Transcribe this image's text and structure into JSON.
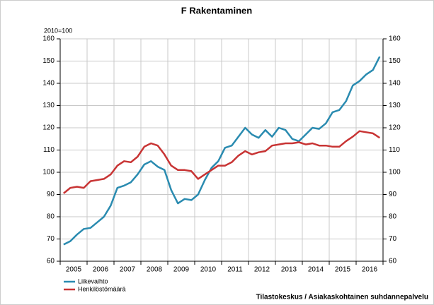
{
  "chart_data": {
    "type": "line",
    "title": "F Rakentaminen",
    "y_label": "2010=100",
    "source": "Tilastokeskus / Asiakaskohtainen suhdannepalvelu",
    "categories": [
      null,
      "2005",
      null,
      null,
      null,
      "2006",
      null,
      null,
      null,
      "2007",
      null,
      null,
      null,
      "2008",
      null,
      null,
      null,
      "2009",
      null,
      null,
      null,
      "2010",
      null,
      null,
      null,
      "2011",
      null,
      null,
      null,
      "2012",
      null,
      null,
      null,
      "2013",
      null,
      null,
      null,
      "2014",
      null,
      null,
      null,
      "2015",
      null,
      null,
      null,
      "2016",
      null,
      null
    ],
    "series": [
      {
        "name": "Liikevaihto",
        "color": "#2a8bb0",
        "values": [
          67.5,
          69,
          72,
          74.5,
          75,
          77.5,
          80,
          85,
          93,
          94,
          95.5,
          99,
          103.5,
          105,
          102.5,
          101,
          92,
          86,
          88,
          87.5,
          90,
          96.5,
          102,
          105,
          111,
          112,
          116,
          120,
          117,
          115.5,
          119,
          116,
          120,
          119,
          115,
          114,
          117,
          120,
          119.5,
          122,
          127,
          128,
          132,
          139,
          141,
          144,
          146,
          152
        ]
      },
      {
        "name": "Henkilöstömäärä",
        "color": "#c83434",
        "values": [
          90.5,
          93,
          93.5,
          93,
          96,
          96.5,
          97,
          99,
          103,
          105,
          104.5,
          107,
          111.5,
          113,
          112,
          108,
          103,
          101,
          101,
          100.5,
          97,
          99,
          101,
          103,
          103,
          104.5,
          107.5,
          109.5,
          108,
          109,
          109.5,
          112,
          112.5,
          113,
          113,
          113.5,
          112.5,
          113,
          112,
          112,
          111.5,
          111.5,
          114,
          116,
          118.5,
          118,
          117.5,
          115.5
        ]
      }
    ],
    "ylim": [
      60,
      160
    ],
    "yticks": [
      60,
      70,
      80,
      90,
      100,
      110,
      120,
      130,
      140,
      150,
      160
    ],
    "y2lim": [
      60,
      160
    ],
    "y2ticks": [
      60,
      70,
      80,
      90,
      100,
      110,
      120,
      130,
      140,
      150,
      160
    ],
    "grid": true,
    "legend": "bottom-left"
  }
}
